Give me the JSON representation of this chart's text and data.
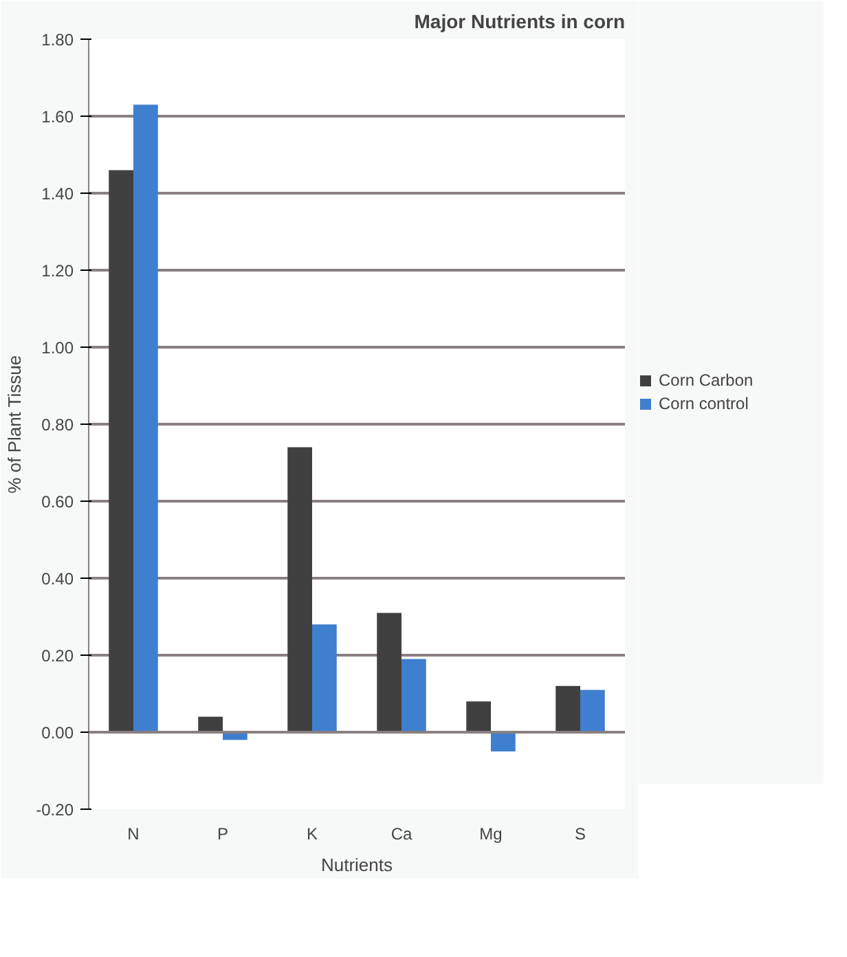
{
  "chart_data": {
    "type": "bar",
    "title": "Major Nutrients in corn",
    "xlabel": "Nutrients",
    "ylabel": "% of Plant Tissue",
    "categories": [
      "N",
      "P",
      "K",
      "Ca",
      "Mg",
      "S"
    ],
    "series": [
      {
        "name": "Corn Carbon",
        "color": "#404040",
        "values": [
          1.46,
          0.04,
          0.74,
          0.31,
          0.08,
          0.12
        ]
      },
      {
        "name": "Corn control",
        "color": "#3f7fcf",
        "values": [
          1.63,
          -0.02,
          0.28,
          0.19,
          -0.05,
          0.11
        ]
      }
    ],
    "ylim": [
      -0.2,
      1.8
    ],
    "yticks": [
      {
        "value": -0.2,
        "label": "-0.20"
      },
      {
        "value": 0,
        "label": "0.00"
      },
      {
        "value": 0.2,
        "label": "0.20"
      },
      {
        "value": 0.4,
        "label": "0.40"
      },
      {
        "value": 0.6,
        "label": "0.60"
      },
      {
        "value": 0.8,
        "label": "0.80"
      },
      {
        "value": 1.0,
        "label": "1.00"
      },
      {
        "value": 1.2,
        "label": "1.20"
      },
      {
        "value": 1.4,
        "label": "1.40"
      },
      {
        "value": 1.6,
        "label": "1.60"
      },
      {
        "value": 1.8,
        "label": "1.80"
      }
    ],
    "grid": "y",
    "legend": "right"
  }
}
